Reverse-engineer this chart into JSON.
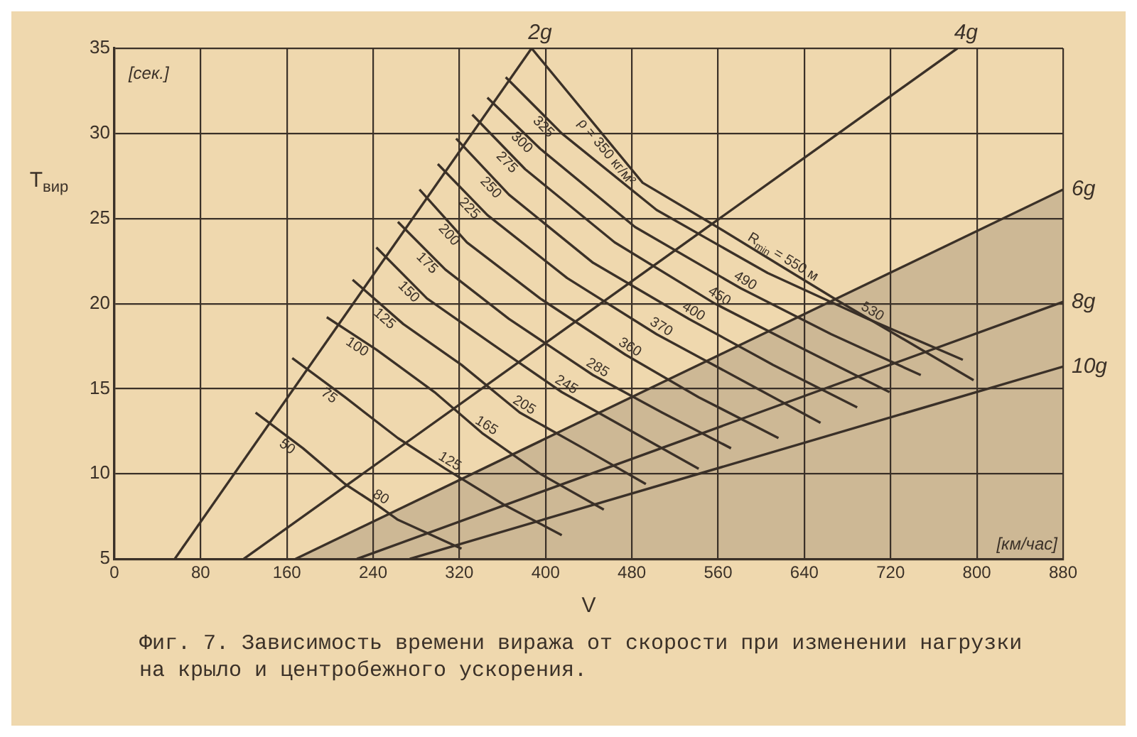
{
  "chart_data": {
    "type": "line",
    "title": "Фиг. 7. Зависимость времени виража от скорости при изменении нагрузки на крыло и центробежного ускорения.",
    "xlabel": "V",
    "ylabel": "T$_{вир}$",
    "xlim": [
      0,
      880
    ],
    "xticks": [
      0,
      80,
      160,
      240,
      320,
      400,
      480,
      560,
      640,
      720,
      800,
      880
    ],
    "ylim": [
      5,
      35
    ],
    "yticks": [
      5,
      10,
      15,
      20,
      25,
      30,
      35
    ],
    "grid": true,
    "marker": "none",
    "line_style": "solid",
    "series": [
      {
        "name": "2g",
        "color": "#3b3128",
        "x": [
          56,
          387
        ],
        "values": [
          5,
          35
        ]
      },
      {
        "name": "4g",
        "color": "#3b3128",
        "x": [
          120,
          782
        ],
        "values": [
          5,
          35
        ]
      },
      {
        "name": "6g",
        "type": "area",
        "color": "#3b3128",
        "x": [
          168,
          880
        ],
        "values": [
          5,
          26.7
        ]
      },
      {
        "name": "8g",
        "color": "#3b3128",
        "x": [
          225,
          880
        ],
        "values": [
          5,
          20.1
        ]
      },
      {
        "name": "10g",
        "color": "#3b3128",
        "x": [
          274,
          880
        ],
        "values": [
          5,
          16.3
        ]
      },
      {
        "name": "ρ = 350 кг/м²",
        "color": "#3b3128",
        "x": [
          387,
          490,
          554,
          616,
          673,
          797
        ],
        "values": [
          35,
          27.1,
          24.7,
          22.3,
          20.1,
          15.5
        ]
      },
      {
        "name": "325",
        "color": "#3b3128",
        "x": [
          363,
          415,
          503,
          606,
          699,
          787
        ],
        "values": [
          33.3,
          30.0,
          25.5,
          21.8,
          19.1,
          16.7
        ]
      },
      {
        "name": "300",
        "color": "#3b3128",
        "x": [
          346,
          395,
          483,
          581,
          665,
          748
        ],
        "values": [
          32.1,
          29.1,
          24.5,
          20.9,
          18.2,
          15.8
        ]
      },
      {
        "name": "275",
        "color": "#3b3128",
        "x": [
          332,
          381,
          464,
          557,
          640,
          719
        ],
        "values": [
          31.1,
          27.9,
          23.6,
          20.0,
          17.3,
          14.8
        ]
      },
      {
        "name": "250",
        "color": "#3b3128",
        "x": [
          317,
          366,
          444,
          533,
          611,
          689
        ],
        "values": [
          29.7,
          26.4,
          22.4,
          19.1,
          16.4,
          13.9
        ]
      },
      {
        "name": "225",
        "color": "#3b3128",
        "x": [
          300,
          346,
          420,
          503,
          582,
          655
        ],
        "values": [
          28.2,
          25.2,
          21.5,
          18.2,
          15.5,
          13.0
        ]
      },
      {
        "name": "200",
        "color": "#3b3128",
        "x": [
          283,
          327,
          395,
          474,
          542,
          616
        ],
        "values": [
          26.7,
          23.6,
          20.3,
          17.0,
          14.5,
          12.1
        ]
      },
      {
        "name": "175",
        "color": "#3b3128",
        "x": [
          263,
          307,
          366,
          444,
          508,
          572
        ],
        "values": [
          24.8,
          22.0,
          19.1,
          15.8,
          13.6,
          11.5
        ]
      },
      {
        "name": "150",
        "color": "#3b3128",
        "x": [
          243,
          290,
          351,
          415,
          474,
          542
        ],
        "values": [
          23.3,
          20.3,
          17.6,
          14.8,
          12.7,
          10.3
        ]
      },
      {
        "name": "125",
        "color": "#3b3128",
        "x": [
          221,
          268,
          322,
          376,
          435,
          493
        ],
        "values": [
          21.4,
          18.8,
          16.4,
          13.6,
          11.5,
          9.4
        ]
      },
      {
        "name": "100",
        "color": "#3b3128",
        "x": [
          197,
          243,
          297,
          341,
          395,
          454
        ],
        "values": [
          19.2,
          17.3,
          14.8,
          12.4,
          10.0,
          7.9
        ]
      },
      {
        "name": "75",
        "color": "#3b3128",
        "x": [
          165,
          214,
          263,
          307,
          361,
          415
        ],
        "values": [
          16.8,
          14.5,
          12.1,
          10.3,
          8.2,
          6.4
        ]
      },
      {
        "name": "50",
        "color": "#3b3128",
        "x": [
          131,
          175,
          214,
          243,
          263,
          322
        ],
        "values": [
          13.6,
          11.5,
          9.4,
          8.2,
          7.3,
          5.6
        ]
      }
    ],
    "annotations": [
      "[сек.]",
      "[км/час]",
      {
        "text": "R$_{min}$ = 550 м",
        "x": 616,
        "y": 22.3
      },
      {
        "text": "530",
        "x": 699,
        "y": 19.1
      },
      {
        "text": "490",
        "x": 581,
        "y": 20.9
      },
      {
        "text": "450",
        "x": 557,
        "y": 20.0
      },
      {
        "text": "400",
        "x": 533,
        "y": 19.1
      },
      {
        "text": "370",
        "x": 503,
        "y": 18.2
      },
      {
        "text": "360",
        "x": 474,
        "y": 17.0
      },
      {
        "text": "285",
        "x": 444,
        "y": 15.8
      },
      {
        "text": "245",
        "x": 415,
        "y": 14.8
      },
      {
        "text": "205",
        "x": 376,
        "y": 13.6
      },
      {
        "text": "165",
        "x": 341,
        "y": 12.4
      },
      {
        "text": "125",
        "x": 307,
        "y": 10.3
      },
      {
        "text": "80",
        "x": 243,
        "y": 8.2
      }
    ]
  }
}
